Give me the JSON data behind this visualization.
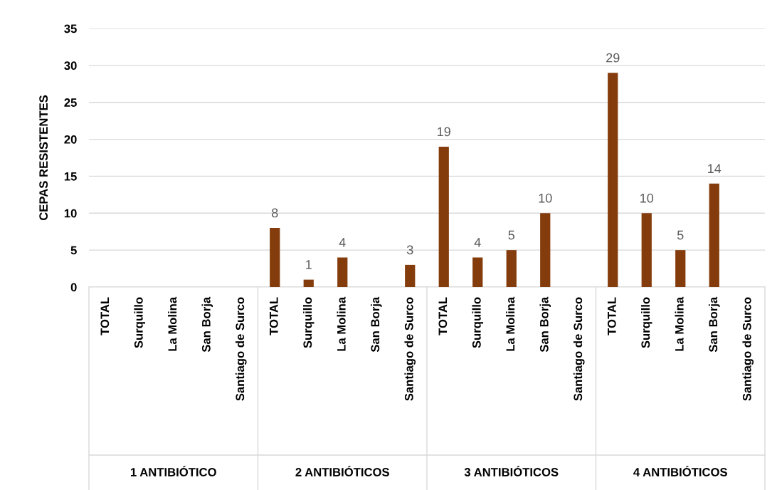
{
  "chart_data": {
    "type": "bar",
    "categories": [
      "TOTAL",
      "Surquillo",
      "La Molina",
      "San Borja",
      "Santiago de Surco",
      "TOTAL",
      "Surquillo",
      "La Molina",
      "San Borja",
      "Santiago de Surco",
      "TOTAL",
      "Surquillo",
      "La Molina",
      "San Borja",
      "Santiago de Surco",
      "TOTAL",
      "Surquillo",
      "La Molina",
      "San Borja",
      "Santiago de Surco"
    ],
    "values": [
      null,
      null,
      null,
      null,
      null,
      8,
      1,
      4,
      null,
      3,
      19,
      4,
      5,
      10,
      null,
      29,
      10,
      5,
      14,
      null
    ],
    "color": "#843c0c",
    "ylabel": "CEPAS RESISTENTES",
    "annotations": [
      "1 ANTIBIÓTICO",
      "2 ANTIBIÓTICOS",
      "3 ANTIBIÓTICOS",
      "4 ANTIBIÓTICOS"
    ],
    "ylim": [
      0,
      35
    ],
    "yticks": [
      0,
      5,
      10,
      15,
      20,
      25,
      30,
      35
    ],
    "grid": "y",
    "data_labels": true
  }
}
